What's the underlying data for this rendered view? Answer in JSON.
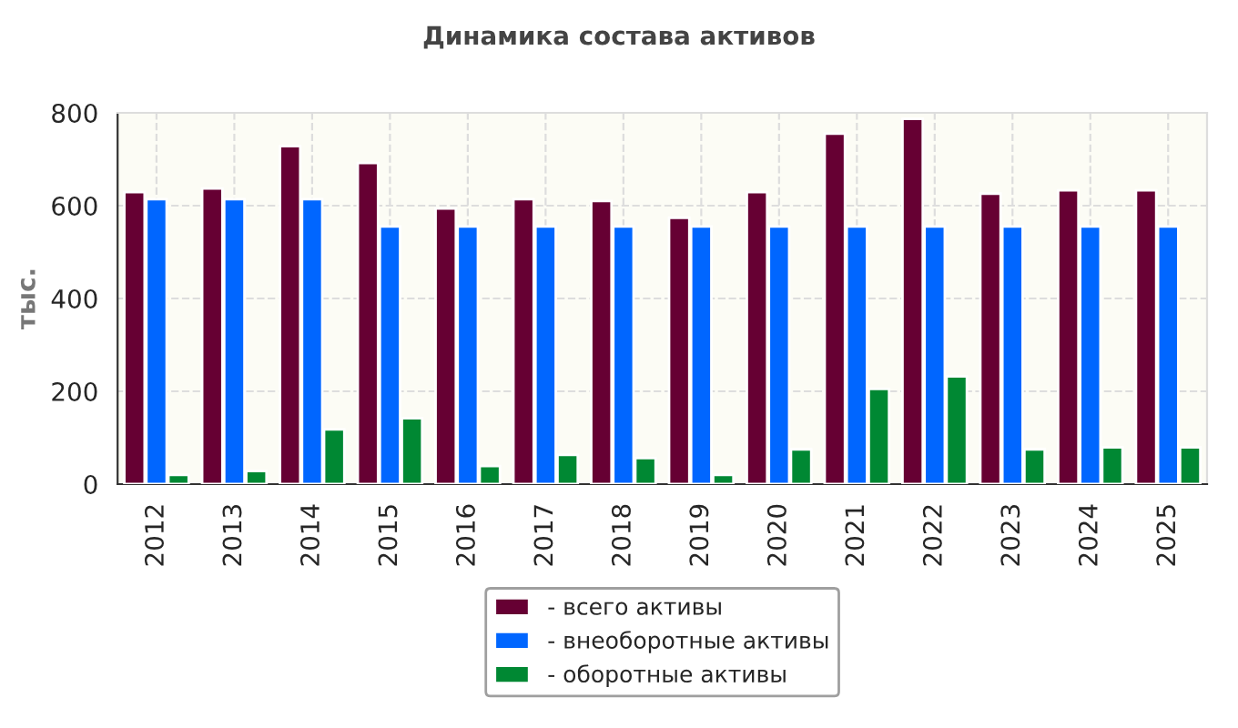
{
  "chart_data": {
    "type": "bar",
    "title": "Динамика состава активов",
    "ylabel": "тыс.",
    "categories": [
      "2012",
      "2013",
      "2014",
      "2015",
      "2016",
      "2017",
      "2018",
      "2019",
      "2020",
      "2021",
      "2022",
      "2023",
      "2024",
      "2025"
    ],
    "series": [
      {
        "name": "- всего активы",
        "color": "#660033",
        "values": [
          629,
          637,
          728,
          692,
          594,
          614,
          610,
          574,
          629,
          755,
          787,
          626,
          633,
          633
        ]
      },
      {
        "name": "- внеоборотные активы",
        "color": "#0066ff",
        "values": [
          614,
          614,
          614,
          555,
          555,
          555,
          555,
          555,
          555,
          555,
          555,
          555,
          555,
          555
        ]
      },
      {
        "name": "- оборотные активы",
        "color": "#008833",
        "values": [
          20,
          28,
          118,
          142,
          39,
          63,
          56,
          20,
          75,
          205,
          232,
          75,
          79,
          79
        ]
      }
    ],
    "ylim": [
      0,
      800
    ],
    "yticks": [
      0,
      200,
      400,
      600,
      800
    ],
    "grid": true,
    "legend": "bottom"
  }
}
